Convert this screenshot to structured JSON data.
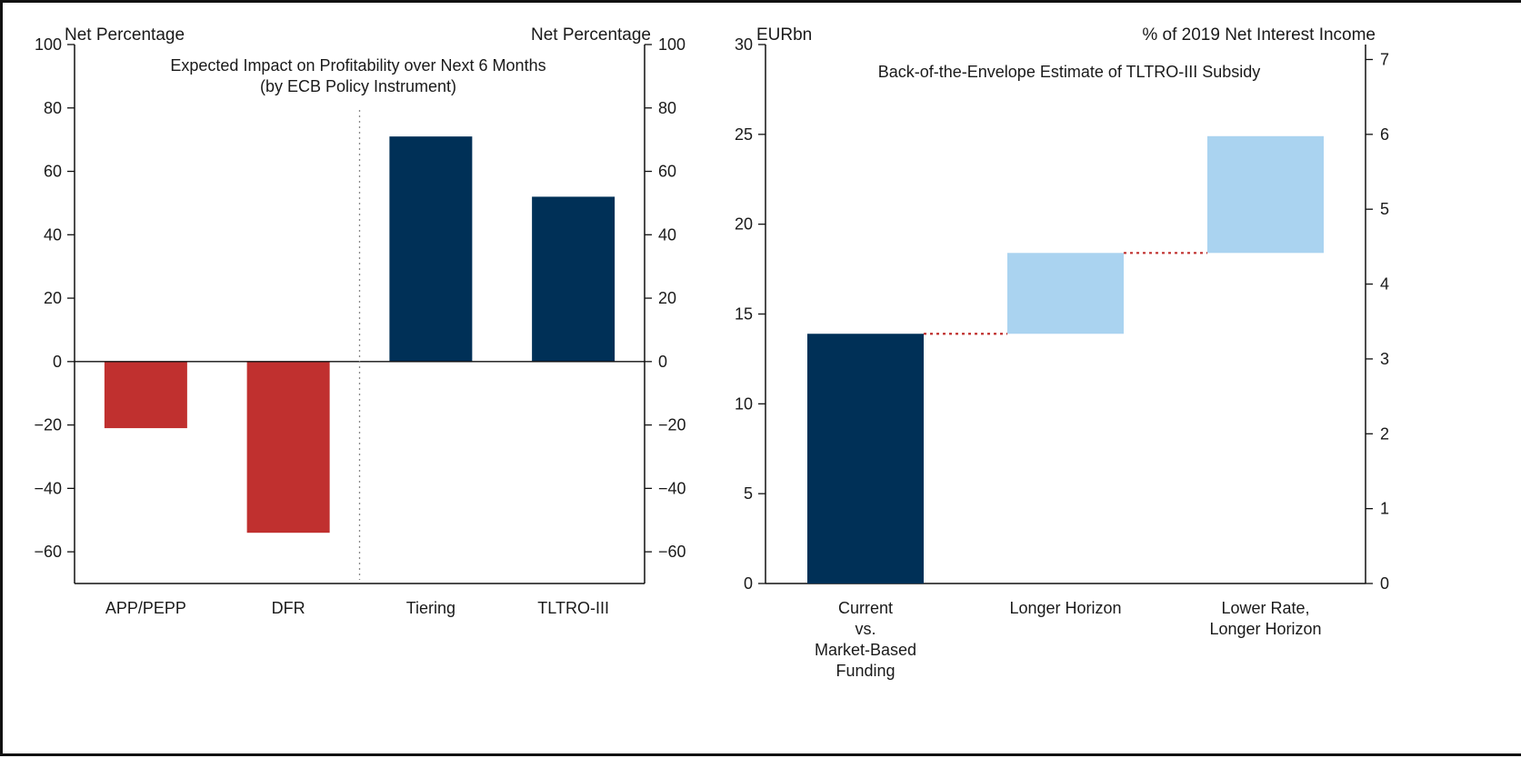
{
  "chart_data": [
    {
      "type": "bar",
      "title": "Expected Impact on Profitability over Next 6 Months",
      "subtitle": "(by ECB Policy Instrument)",
      "ylabel_left": "Net Percentage",
      "ylabel_right": "Net Percentage",
      "ylim": [
        -70,
        100
      ],
      "yticks": [
        100,
        80,
        60,
        40,
        20,
        0,
        -20,
        -40,
        -60
      ],
      "categories": [
        "APP/PEPP",
        "DFR",
        "Tiering",
        "TLTRO-III"
      ],
      "values": [
        -21,
        -54,
        71,
        52
      ],
      "colors": [
        "#c0302f",
        "#c0302f",
        "#003057",
        "#003057"
      ],
      "separator_after_index": 1,
      "grid": false
    },
    {
      "type": "waterfall",
      "title": "Back-of-the-Envelope Estimate of TLTRO-III Subsidy",
      "ylabel_left": "EURbn",
      "ylabel_right": "% of 2019 Net Interest Income",
      "ylim": [
        0,
        30
      ],
      "yticks": [
        30,
        25,
        20,
        15,
        10,
        5,
        0
      ],
      "ylim_right": [
        0,
        7.2
      ],
      "yticks_right": [
        7,
        6,
        5,
        4,
        3,
        2,
        1,
        0
      ],
      "categories": [
        [
          "Current",
          "vs.",
          "Market-Based",
          "Funding"
        ],
        [
          "Longer Horizon"
        ],
        [
          "Lower Rate,",
          "Longer Horizon"
        ]
      ],
      "bars": [
        {
          "base": 0,
          "top": 13.9,
          "color": "#003057"
        },
        {
          "base": 13.9,
          "top": 18.4,
          "color": "#aad3f0"
        },
        {
          "base": 18.4,
          "top": 24.9,
          "color": "#aad3f0"
        }
      ],
      "connector_color": "#c0302f",
      "grid": false
    }
  ]
}
